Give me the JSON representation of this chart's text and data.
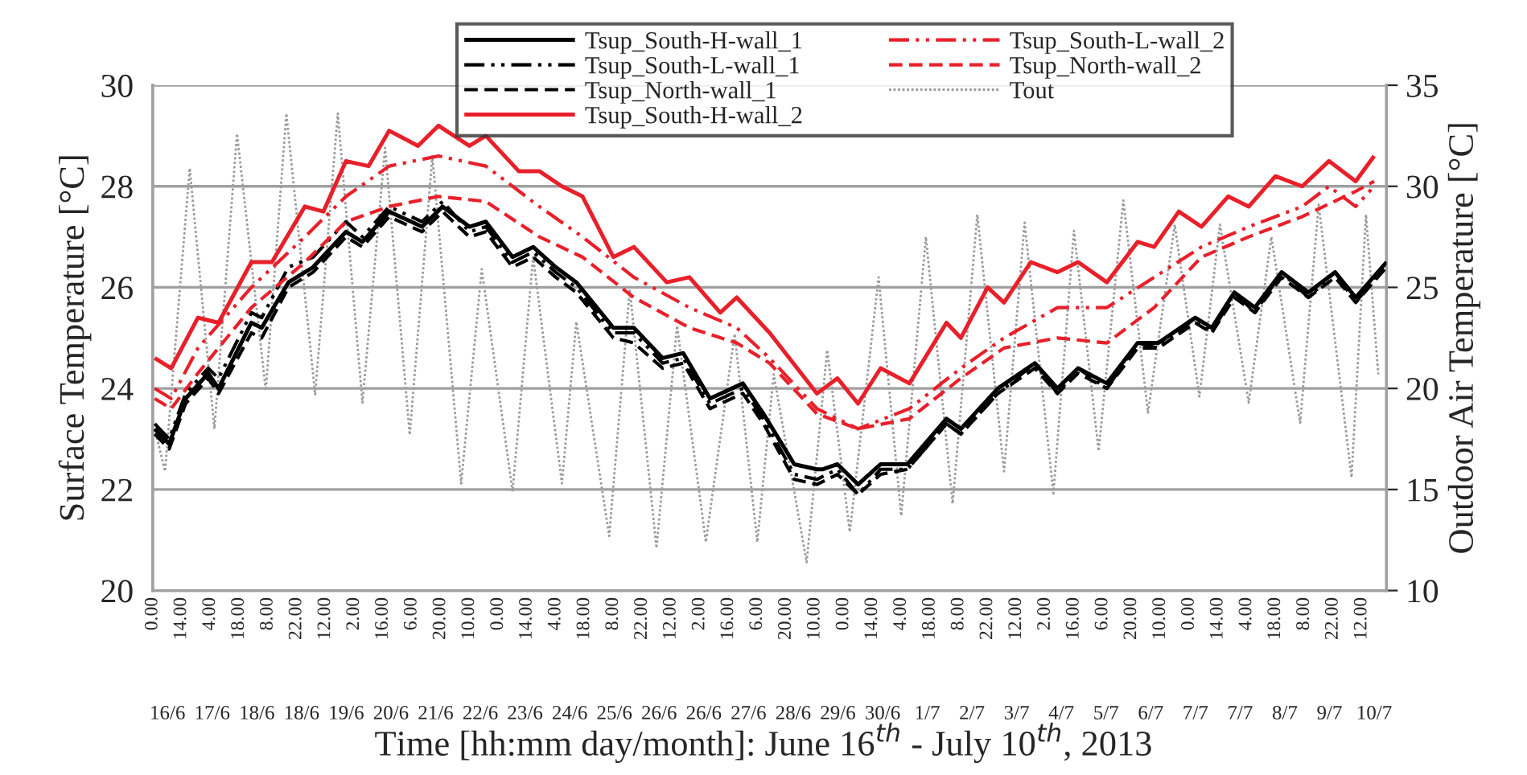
{
  "chart_data": {
    "type": "line",
    "xlabel": "Time [hh:mm day/month]: June 16$^{th}$ - July 10$^{th}$, 2013",
    "ylabel": "Surface Temperature [°C]",
    "y2label": "Outdoor Air Temperature [°C]",
    "annotations": [
      "16/6",
      "17/6",
      "18/6",
      "18/6",
      "19/6",
      "20/6",
      "21/6",
      "22/6",
      "23/6",
      "24/6",
      "25/6",
      "26/6",
      "26/6",
      "27/6",
      "28/6",
      "29/6",
      "30/6",
      "1/7",
      "2/7",
      "3/7",
      "4/7",
      "5/7",
      "6/7",
      "7/7",
      "7/7",
      "8/7",
      "9/7",
      "10/7"
    ],
    "xlim": [
      "2013-06-16T00:00",
      "2013-07-11T00:00"
    ],
    "xticks": [
      {
        "value": "2013-06-16T00:00",
        "label": "0.00"
      },
      {
        "value": "2013-06-16T14:00",
        "label": "14.00"
      },
      {
        "value": "2013-06-17T04:00",
        "label": "4.00"
      },
      {
        "value": "2013-06-17T18:00",
        "label": "18.00"
      },
      {
        "value": "2013-06-18T08:00",
        "label": "8.00"
      },
      {
        "value": "2013-06-18T22:00",
        "label": "22.00"
      },
      {
        "value": "2013-06-19T12:00",
        "label": "12.00"
      },
      {
        "value": "2013-06-20T02:00",
        "label": "2.00"
      },
      {
        "value": "2013-06-20T16:00",
        "label": "16.00"
      },
      {
        "value": "2013-06-21T06:00",
        "label": "6.00"
      },
      {
        "value": "2013-06-21T20:00",
        "label": "20.00"
      },
      {
        "value": "2013-06-22T10:00",
        "label": "10.00"
      },
      {
        "value": "2013-06-23T00:00",
        "label": "0.00"
      },
      {
        "value": "2013-06-23T14:00",
        "label": "14.00"
      },
      {
        "value": "2013-06-24T04:00",
        "label": "4.00"
      },
      {
        "value": "2013-06-24T18:00",
        "label": "18.00"
      },
      {
        "value": "2013-06-25T08:00",
        "label": "8.00"
      },
      {
        "value": "2013-06-25T22:00",
        "label": "22.00"
      },
      {
        "value": "2013-06-26T12:00",
        "label": "12.00"
      },
      {
        "value": "2013-06-27T02:00",
        "label": "2.00"
      },
      {
        "value": "2013-06-27T16:00",
        "label": "16.00"
      },
      {
        "value": "2013-06-28T06:00",
        "label": "6.00"
      },
      {
        "value": "2013-06-28T20:00",
        "label": "20.00"
      },
      {
        "value": "2013-06-29T10:00",
        "label": "10.00"
      },
      {
        "value": "2013-06-30T00:00",
        "label": "0.00"
      },
      {
        "value": "2013-06-30T14:00",
        "label": "14.00"
      },
      {
        "value": "2013-07-01T04:00",
        "label": "4.00"
      },
      {
        "value": "2013-07-01T18:00",
        "label": "18.00"
      },
      {
        "value": "2013-07-02T08:00",
        "label": "8.00"
      },
      {
        "value": "2013-07-02T22:00",
        "label": "22.00"
      },
      {
        "value": "2013-07-03T12:00",
        "label": "12.00"
      },
      {
        "value": "2013-07-04T02:00",
        "label": "2.00"
      },
      {
        "value": "2013-07-04T16:00",
        "label": "16.00"
      },
      {
        "value": "2013-07-05T06:00",
        "label": "6.00"
      },
      {
        "value": "2013-07-05T20:00",
        "label": "20.00"
      },
      {
        "value": "2013-07-06T10:00",
        "label": "10.00"
      },
      {
        "value": "2013-07-07T00:00",
        "label": "0.00"
      },
      {
        "value": "2013-07-07T14:00",
        "label": "14.00"
      },
      {
        "value": "2013-07-08T04:00",
        "label": "4.00"
      },
      {
        "value": "2013-07-08T18:00",
        "label": "18.00"
      },
      {
        "value": "2013-07-09T08:00",
        "label": "8.00"
      },
      {
        "value": "2013-07-09T22:00",
        "label": "22.00"
      },
      {
        "value": "2013-07-10T12:00",
        "label": "12.00"
      }
    ],
    "ylim": [
      20,
      30
    ],
    "yticks": [
      20,
      22,
      24,
      26,
      28,
      30
    ],
    "y2lim": [
      10,
      35
    ],
    "y2ticks": [
      10,
      15,
      20,
      25,
      30,
      35
    ],
    "grid": "y",
    "legend": "top right",
    "marker": "none",
    "series": [
      {
        "name": "Tsup_South-H-wall_1",
        "color": "#000000",
        "line_style": "solid",
        "x": [
          "2013-06-16T01:00",
          "2013-06-16T08:00",
          "2013-06-16T16:00",
          "2013-06-17T03:00",
          "2013-06-17T08:00",
          "2013-06-18T00:00",
          "2013-06-18T05:00",
          "2013-06-18T18:00",
          "2013-06-19T06:00",
          "2013-06-19T22:00",
          "2013-06-20T06:00",
          "2013-06-20T19:00",
          "2013-06-21T11:00",
          "2013-06-21T21:00",
          "2013-06-22T10:00",
          "2013-06-22T18:00",
          "2013-06-23T07:00",
          "2013-06-23T17:00",
          "2013-06-24T04:00",
          "2013-06-24T14:00",
          "2013-06-25T08:00",
          "2013-06-25T18:00",
          "2013-06-26T08:00",
          "2013-06-26T18:00",
          "2013-06-27T07:00",
          "2013-06-27T23:00",
          "2013-06-28T09:00",
          "2013-06-29T00:00",
          "2013-06-29T11:00",
          "2013-06-29T14:00",
          "2013-06-29T21:00",
          "2013-06-30T07:00",
          "2013-06-30T18:00",
          "2013-07-01T07:00",
          "2013-07-02T02:00",
          "2013-07-02T09:00",
          "2013-07-03T03:00",
          "2013-07-03T21:00",
          "2013-07-04T08:00",
          "2013-07-04T18:00",
          "2013-07-05T08:00",
          "2013-07-05T23:00",
          "2013-07-06T09:00",
          "2013-07-07T03:00",
          "2013-07-07T11:00",
          "2013-07-07T22:00",
          "2013-07-08T08:00",
          "2013-07-08T21:00",
          "2013-07-09T10:00",
          "2013-07-09T23:00",
          "2013-07-10T09:00",
          "2013-07-11T00:00"
        ],
        "values": [
          23.2,
          22.9,
          23.8,
          24.3,
          24.0,
          25.3,
          25.2,
          26.1,
          26.4,
          27.1,
          26.9,
          27.5,
          27.2,
          27.6,
          27.2,
          27.3,
          26.6,
          26.8,
          26.4,
          26.1,
          25.2,
          25.2,
          24.6,
          24.7,
          23.8,
          24.1,
          23.5,
          22.5,
          22.4,
          22.4,
          22.5,
          22.1,
          22.5,
          22.5,
          23.4,
          23.2,
          24.0,
          24.5,
          24.0,
          24.4,
          24.1,
          24.9,
          24.9,
          25.4,
          25.2,
          25.9,
          25.6,
          26.3,
          25.9,
          26.3,
          25.8,
          26.5
        ]
      },
      {
        "name": "Tsup_South-L-wall_1",
        "color": "#000000",
        "line_style": "dashdot",
        "x": [
          "2013-06-16T01:00",
          "2013-06-16T08:00",
          "2013-06-16T16:00",
          "2013-06-17T03:00",
          "2013-06-17T08:00",
          "2013-06-18T00:00",
          "2013-06-18T05:00",
          "2013-06-18T18:00",
          "2013-06-19T06:00",
          "2013-06-19T22:00",
          "2013-06-20T06:00",
          "2013-06-20T19:00",
          "2013-06-21T11:00",
          "2013-06-21T21:00",
          "2013-06-22T10:00",
          "2013-06-22T18:00",
          "2013-06-23T07:00",
          "2013-06-23T17:00",
          "2013-06-24T04:00",
          "2013-06-24T14:00",
          "2013-06-25T08:00",
          "2013-06-25T18:00",
          "2013-06-26T08:00",
          "2013-06-26T18:00",
          "2013-06-27T07:00",
          "2013-06-27T23:00",
          "2013-06-28T09:00",
          "2013-06-29T00:00",
          "2013-06-29T11:00",
          "2013-06-29T21:00",
          "2013-06-30T07:00",
          "2013-06-30T18:00",
          "2013-07-01T07:00",
          "2013-07-02T02:00",
          "2013-07-02T09:00",
          "2013-07-03T03:00",
          "2013-07-03T21:00",
          "2013-07-04T08:00",
          "2013-07-04T18:00",
          "2013-07-05T08:00",
          "2013-07-05T23:00",
          "2013-07-06T09:00",
          "2013-07-07T03:00",
          "2013-07-07T11:00",
          "2013-07-07T22:00",
          "2013-07-08T08:00",
          "2013-07-08T21:00",
          "2013-07-09T10:00",
          "2013-07-09T23:00",
          "2013-07-10T09:00",
          "2013-07-11T00:00"
        ],
        "values": [
          23.3,
          23.0,
          23.9,
          24.4,
          24.2,
          25.5,
          25.4,
          26.4,
          26.6,
          27.3,
          27.0,
          27.6,
          27.3,
          27.7,
          27.1,
          27.2,
          26.5,
          26.7,
          26.3,
          26.0,
          25.1,
          25.1,
          24.5,
          24.6,
          23.7,
          24.0,
          23.4,
          22.3,
          22.2,
          22.4,
          21.9,
          22.4,
          22.4,
          23.3,
          23.1,
          23.9,
          24.5,
          23.9,
          24.4,
          24.0,
          24.9,
          24.8,
          25.4,
          25.1,
          25.9,
          25.5,
          26.3,
          25.8,
          26.3,
          25.7,
          26.5
        ]
      },
      {
        "name": "Tsup_North-wall_1",
        "color": "#000000",
        "line_style": "dashed",
        "x": [
          "2013-06-16T01:00",
          "2013-06-16T08:00",
          "2013-06-16T16:00",
          "2013-06-17T03:00",
          "2013-06-17T08:00",
          "2013-06-18T00:00",
          "2013-06-18T05:00",
          "2013-06-18T18:00",
          "2013-06-19T06:00",
          "2013-06-19T22:00",
          "2013-06-20T06:00",
          "2013-06-20T19:00",
          "2013-06-21T11:00",
          "2013-06-21T21:00",
          "2013-06-22T10:00",
          "2013-06-22T18:00",
          "2013-06-23T07:00",
          "2013-06-23T17:00",
          "2013-06-24T04:00",
          "2013-06-24T14:00",
          "2013-06-25T08:00",
          "2013-06-25T18:00",
          "2013-06-26T08:00",
          "2013-06-26T18:00",
          "2013-06-27T07:00",
          "2013-06-27T23:00",
          "2013-06-28T09:00",
          "2013-06-29T00:00",
          "2013-06-29T11:00",
          "2013-06-29T21:00",
          "2013-06-30T07:00",
          "2013-06-30T18:00",
          "2013-07-01T07:00",
          "2013-07-02T02:00",
          "2013-07-02T09:00",
          "2013-07-03T03:00",
          "2013-07-03T21:00",
          "2013-07-04T08:00",
          "2013-07-04T18:00",
          "2013-07-05T08:00",
          "2013-07-05T23:00",
          "2013-07-06T09:00",
          "2013-07-07T03:00",
          "2013-07-07T11:00",
          "2013-07-07T22:00",
          "2013-07-08T08:00",
          "2013-07-08T21:00",
          "2013-07-09T10:00",
          "2013-07-09T23:00",
          "2013-07-10T09:00",
          "2013-07-11T00:00"
        ],
        "values": [
          23.1,
          22.8,
          23.7,
          24.2,
          23.9,
          25.1,
          25.0,
          26.0,
          26.3,
          27.0,
          26.8,
          27.4,
          27.1,
          27.5,
          27.0,
          27.1,
          26.4,
          26.6,
          26.2,
          25.9,
          25.0,
          24.9,
          24.4,
          24.5,
          23.6,
          23.9,
          23.3,
          22.2,
          22.1,
          22.3,
          21.9,
          22.3,
          22.4,
          23.3,
          23.1,
          23.9,
          24.4,
          23.9,
          24.3,
          24.0,
          24.8,
          24.8,
          25.3,
          25.1,
          25.8,
          25.5,
          26.2,
          25.8,
          26.2,
          25.7,
          26.4
        ]
      },
      {
        "name": "Tsup_South-H-wall_2",
        "color": "#e8202a",
        "line_style": "solid",
        "x": [
          "2013-06-16T01:00",
          "2013-06-16T09:00",
          "2013-06-16T22:00",
          "2013-06-17T08:00",
          "2013-06-18T00:00",
          "2013-06-18T10:00",
          "2013-06-19T02:00",
          "2013-06-19T11:00",
          "2013-06-19T22:00",
          "2013-06-20T09:00",
          "2013-06-20T19:00",
          "2013-06-21T09:00",
          "2013-06-21T19:00",
          "2013-06-22T10:00",
          "2013-06-22T18:00",
          "2013-06-23T10:00",
          "2013-06-23T20:00",
          "2013-06-24T07:00",
          "2013-06-24T17:00",
          "2013-06-25T08:00",
          "2013-06-25T18:00",
          "2013-06-26T10:00",
          "2013-06-26T21:00",
          "2013-06-27T12:00",
          "2013-06-27T20:00",
          "2013-06-28T12:00",
          "2013-06-29T11:00",
          "2013-06-29T21:00",
          "2013-06-30T07:00",
          "2013-06-30T18:00",
          "2013-07-01T08:00",
          "2013-07-02T02:00",
          "2013-07-02T09:00",
          "2013-07-02T22:00",
          "2013-07-03T06:00",
          "2013-07-03T19:00",
          "2013-07-04T08:00",
          "2013-07-04T18:00",
          "2013-07-05T08:00",
          "2013-07-05T23:00",
          "2013-07-06T07:00",
          "2013-07-06T19:00",
          "2013-07-07T06:00",
          "2013-07-07T19:00",
          "2013-07-08T05:00",
          "2013-07-08T18:00",
          "2013-07-09T07:00",
          "2013-07-09T20:00",
          "2013-07-10T09:00",
          "2013-07-10T18:00"
        ],
        "values": [
          24.6,
          24.4,
          25.4,
          25.3,
          26.5,
          26.5,
          27.6,
          27.5,
          28.5,
          28.4,
          29.1,
          28.8,
          29.2,
          28.8,
          29.0,
          28.3,
          28.3,
          28.0,
          27.8,
          26.6,
          26.8,
          26.1,
          26.2,
          25.5,
          25.8,
          25.1,
          23.9,
          24.2,
          23.7,
          24.4,
          24.1,
          25.3,
          25.0,
          26.0,
          25.7,
          26.5,
          26.3,
          26.5,
          26.1,
          26.9,
          26.8,
          27.5,
          27.2,
          27.8,
          27.6,
          28.2,
          28.0,
          28.5,
          28.1,
          28.6
        ]
      },
      {
        "name": "Tsup_South-L-wall_2",
        "color": "#e8202a",
        "line_style": "dashdot",
        "x": [
          "2013-06-16T01:00",
          "2013-06-16T09:00",
          "2013-06-16T22:00",
          "2013-06-18T00:00",
          "2013-06-19T02:00",
          "2013-06-19T22:00",
          "2013-06-20T19:00",
          "2013-06-21T19:00",
          "2013-06-22T18:00",
          "2013-06-23T20:00",
          "2013-06-24T17:00",
          "2013-06-25T18:00",
          "2013-06-26T21:00",
          "2013-06-27T20:00",
          "2013-06-28T12:00",
          "2013-06-29T11:00",
          "2013-06-30T07:00",
          "2013-07-01T08:00",
          "2013-07-02T09:00",
          "2013-07-03T06:00",
          "2013-07-04T08:00",
          "2013-07-05T08:00",
          "2013-07-06T07:00",
          "2013-07-07T06:00",
          "2013-07-08T05:00",
          "2013-07-09T07:00",
          "2013-07-09T20:00",
          "2013-07-10T09:00",
          "2013-07-10T18:00"
        ],
        "values": [
          24.0,
          23.8,
          24.8,
          26.0,
          27.0,
          27.8,
          28.4,
          28.6,
          28.4,
          27.6,
          27.0,
          26.2,
          25.6,
          25.2,
          24.6,
          23.6,
          23.2,
          23.6,
          24.4,
          25.0,
          25.6,
          25.6,
          26.2,
          26.8,
          27.2,
          27.6,
          28.0,
          27.6,
          28.0
        ]
      },
      {
        "name": "Tsup_North-wall_2",
        "color": "#e8202a",
        "line_style": "dashed",
        "x": [
          "2013-06-16T01:00",
          "2013-06-16T09:00",
          "2013-06-16T22:00",
          "2013-06-18T00:00",
          "2013-06-19T02:00",
          "2013-06-19T22:00",
          "2013-06-20T19:00",
          "2013-06-21T19:00",
          "2013-06-22T18:00",
          "2013-06-23T20:00",
          "2013-06-24T17:00",
          "2013-06-25T18:00",
          "2013-06-26T21:00",
          "2013-06-27T20:00",
          "2013-06-28T12:00",
          "2013-06-29T11:00",
          "2013-06-30T07:00",
          "2013-07-01T08:00",
          "2013-07-02T09:00",
          "2013-07-03T06:00",
          "2013-07-04T08:00",
          "2013-07-05T08:00",
          "2013-07-06T07:00",
          "2013-07-07T06:00",
          "2013-07-08T05:00",
          "2013-07-09T07:00",
          "2013-07-10T09:00",
          "2013-07-10T18:00"
        ],
        "values": [
          23.8,
          23.6,
          24.3,
          25.6,
          26.5,
          27.3,
          27.6,
          27.8,
          27.7,
          27.0,
          26.6,
          25.8,
          25.2,
          24.9,
          24.5,
          23.5,
          23.2,
          23.4,
          24.2,
          24.8,
          25.0,
          24.9,
          25.6,
          26.6,
          27.0,
          27.4,
          27.9,
          28.1
        ]
      },
      {
        "name": "Tout",
        "color": "#9a9a9a",
        "line_style": "dotted",
        "axis": "y2",
        "x": [
          "2013-06-16T01:00",
          "2013-06-16T06:00",
          "2013-06-16T18:00",
          "2013-06-17T06:00",
          "2013-06-17T17:00",
          "2013-06-18T07:00",
          "2013-06-18T17:00",
          "2013-06-19T07:00",
          "2013-06-19T18:00",
          "2013-06-20T06:00",
          "2013-06-20T17:00",
          "2013-06-21T05:00",
          "2013-06-21T16:00",
          "2013-06-22T06:00",
          "2013-06-22T16:00",
          "2013-06-23T07:00",
          "2013-06-23T17:00",
          "2013-06-24T07:00",
          "2013-06-24T14:00",
          "2013-06-25T06:00",
          "2013-06-25T16:00",
          "2013-06-26T05:00",
          "2013-06-26T15:00",
          "2013-06-27T05:00",
          "2013-06-27T19:00",
          "2013-06-28T06:00",
          "2013-06-28T14:00",
          "2013-06-29T06:00",
          "2013-06-29T16:00",
          "2013-06-30T03:00",
          "2013-06-30T17:00",
          "2013-07-01T04:00",
          "2013-07-01T16:00",
          "2013-07-02T05:00",
          "2013-07-02T17:00",
          "2013-07-03T06:00",
          "2013-07-03T16:00",
          "2013-07-04T06:00",
          "2013-07-04T16:00",
          "2013-07-05T04:00",
          "2013-07-05T16:00",
          "2013-07-06T04:00",
          "2013-07-06T17:00",
          "2013-07-07T05:00",
          "2013-07-07T15:00",
          "2013-07-08T05:00",
          "2013-07-08T16:00",
          "2013-07-09T06:00",
          "2013-07-09T15:00",
          "2013-07-10T07:00",
          "2013-07-10T14:00",
          "2013-07-10T20:00"
        ],
        "values": [
          18.0,
          15.9,
          30.9,
          18.0,
          32.6,
          19.9,
          33.6,
          19.7,
          33.6,
          19.3,
          31.9,
          17.7,
          31.5,
          15.3,
          25.9,
          14.9,
          26.5,
          15.3,
          23.3,
          12.7,
          24.9,
          12.1,
          23.1,
          12.4,
          22.7,
          12.4,
          20.7,
          11.4,
          21.9,
          12.9,
          25.5,
          13.7,
          27.5,
          14.3,
          28.6,
          15.9,
          28.2,
          14.8,
          27.8,
          16.9,
          29.3,
          18.8,
          28.1,
          19.6,
          28.1,
          19.3,
          27.5,
          18.3,
          29.1,
          15.6,
          28.6,
          20.7
        ]
      }
    ]
  }
}
